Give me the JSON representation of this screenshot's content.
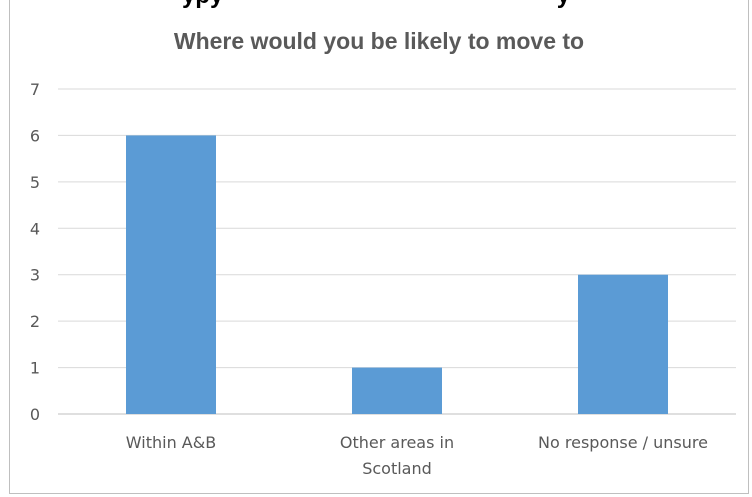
{
  "page": {
    "clipped_heading": "...ypy... ...uld ...y..., ...ould ...ly"
  },
  "chart_data": {
    "type": "bar",
    "title": "Where would you be likely to move to",
    "categories": [
      "Within A&B",
      "Other areas in Scotland",
      "No response / unsure"
    ],
    "category_lines": [
      [
        "Within A&B"
      ],
      [
        "Other areas in",
        "Scotland"
      ],
      [
        "No response / unsure"
      ]
    ],
    "values": [
      6,
      1,
      3
    ],
    "ylim": [
      0,
      7
    ],
    "yticks": [
      0,
      1,
      2,
      3,
      4,
      5,
      6,
      7
    ],
    "grid": true,
    "legend": "none",
    "bar_color": "#5b9bd5",
    "grid_color": "#d9d9d9",
    "text_color": "#595959"
  }
}
